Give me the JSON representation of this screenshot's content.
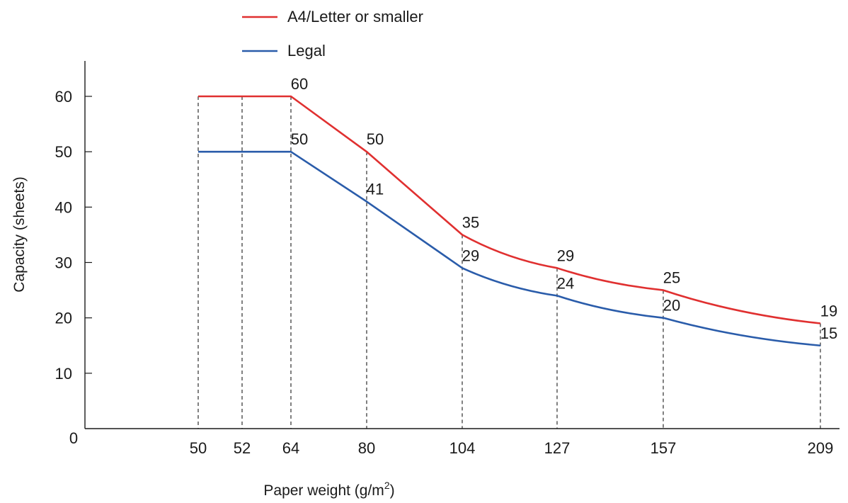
{
  "chart_data": {
    "type": "line",
    "title": "",
    "xlabel": "Paper weight (g/m",
    "xlabel_superscript": "2",
    "xlabel_suffix": ")",
    "ylabel": "Capacity (sheets)",
    "x_ticks": [
      50,
      52,
      64,
      80,
      104,
      127,
      157,
      209
    ],
    "y_ticks": [
      0,
      10,
      20,
      30,
      40,
      50,
      60
    ],
    "ylim": [
      0,
      60
    ],
    "grid": false,
    "legend_position": "top",
    "series": [
      {
        "name": "A4/Letter or smaller",
        "color": "#e03030",
        "x": [
          50,
          52,
          64,
          80,
          104,
          127,
          157,
          209
        ],
        "values": [
          60,
          60,
          60,
          50,
          35,
          29,
          25,
          19
        ],
        "labels": [
          {
            "x": 64,
            "text": "60"
          },
          {
            "x": 80,
            "text": "50"
          },
          {
            "x": 104,
            "text": "35"
          },
          {
            "x": 127,
            "text": "29"
          },
          {
            "x": 157,
            "text": "25"
          },
          {
            "x": 209,
            "text": "19"
          }
        ]
      },
      {
        "name": "Legal",
        "color": "#2a5caa",
        "x": [
          50,
          52,
          64,
          80,
          104,
          127,
          157,
          209
        ],
        "values": [
          50,
          50,
          50,
          41,
          29,
          24,
          20,
          15
        ],
        "labels": [
          {
            "x": 64,
            "text": "50"
          },
          {
            "x": 80,
            "text": "41"
          },
          {
            "x": 104,
            "text": "29"
          },
          {
            "x": 127,
            "text": "24"
          },
          {
            "x": 157,
            "text": "20"
          },
          {
            "x": 209,
            "text": "15"
          }
        ]
      }
    ]
  }
}
